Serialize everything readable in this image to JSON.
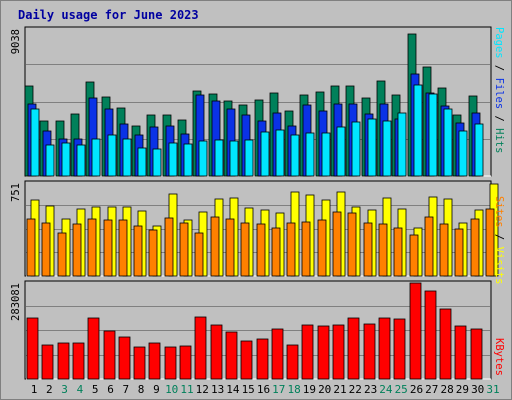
{
  "chart_data": [
    {
      "type": "bar",
      "panel": "pages-files-hits",
      "categories": [
        "1",
        "2",
        "3",
        "4",
        "5",
        "6",
        "7",
        "8",
        "9",
        "10",
        "11",
        "12",
        "13",
        "14",
        "15",
        "16",
        "17",
        "18",
        "19",
        "20",
        "21",
        "22",
        "23",
        "24",
        "25",
        "26",
        "27",
        "28",
        "29",
        "30",
        "31"
      ],
      "ymax_label": "9038",
      "ylim": [
        0,
        9038
      ],
      "series": [
        {
          "name": "Hits",
          "color": "#00805a",
          "values": [
            5550,
            3400,
            3400,
            3800,
            5750,
            4850,
            4200,
            3050,
            3750,
            3750,
            3450,
            5250,
            5050,
            4600,
            4350,
            4700,
            5100,
            4000,
            5000,
            5150,
            5550,
            5550,
            4800,
            5850,
            4950,
            8750,
            6700,
            5400,
            3750,
            4900,
            null
          ]
        },
        {
          "name": "Files",
          "color": "#0a32e6",
          "values": [
            4450,
            2750,
            2250,
            2250,
            4800,
            4100,
            3200,
            2550,
            3000,
            3100,
            2600,
            5000,
            4600,
            4100,
            3750,
            3400,
            3850,
            3050,
            4350,
            4000,
            4400,
            4450,
            3800,
            4400,
            3500,
            6300,
            5100,
            4300,
            3250,
            3850,
            null
          ]
        },
        {
          "name": "Pages",
          "color": "#00e6ff",
          "values": [
            4100,
            1900,
            2050,
            1900,
            2300,
            2500,
            2250,
            1700,
            1650,
            2050,
            1950,
            2150,
            2200,
            2150,
            2200,
            2700,
            2800,
            2550,
            2650,
            2650,
            3000,
            3350,
            3500,
            3400,
            3850,
            5600,
            5050,
            4100,
            2750,
            3200,
            null
          ]
        }
      ],
      "legend": [
        "Pages",
        "Files",
        "Hits"
      ]
    },
    {
      "type": "bar",
      "panel": "visits-sites",
      "categories": [
        "1",
        "2",
        "3",
        "4",
        "5",
        "6",
        "7",
        "8",
        "9",
        "10",
        "11",
        "12",
        "13",
        "14",
        "15",
        "16",
        "17",
        "18",
        "19",
        "20",
        "21",
        "22",
        "23",
        "24",
        "25",
        "26",
        "27",
        "28",
        "29",
        "30",
        "31"
      ],
      "ymax_label": "751",
      "ylim": [
        0,
        751
      ],
      "series": [
        {
          "name": "Visits",
          "color": "#ffff00",
          "values": [
            613,
            564,
            457,
            538,
            560,
            560,
            560,
            523,
            400,
            660,
            450,
            520,
            625,
            630,
            550,
            530,
            510,
            675,
            655,
            615,
            675,
            555,
            530,
            630,
            538,
            390,
            640,
            620,
            425,
            535,
            743
          ]
        },
        {
          "name": "Sites",
          "color": "#ff8000",
          "values": [
            460,
            430,
            350,
            416,
            460,
            450,
            450,
            400,
            375,
            470,
            430,
            350,
            475,
            460,
            425,
            420,
            390,
            430,
            440,
            450,
            520,
            510,
            430,
            420,
            390,
            330,
            480,
            420,
            380,
            460,
            540
          ]
        }
      ],
      "legend": [
        "Sites",
        "Visits"
      ]
    },
    {
      "type": "bar",
      "panel": "kbytes",
      "categories": [
        "1",
        "2",
        "3",
        "4",
        "5",
        "6",
        "7",
        "8",
        "9",
        "10",
        "11",
        "12",
        "13",
        "14",
        "15",
        "16",
        "17",
        "18",
        "19",
        "20",
        "21",
        "22",
        "23",
        "24",
        "25",
        "26",
        "27",
        "28",
        "29",
        "30",
        "31"
      ],
      "ymax_label": "283081",
      "ylim": [
        0,
        283081
      ],
      "series": [
        {
          "name": "KBytes",
          "color": "#ff0000",
          "values": [
            179000,
            100000,
            107000,
            107000,
            181000,
            142000,
            123000,
            93000,
            105000,
            93000,
            96000,
            182000,
            158000,
            140000,
            113000,
            117000,
            147000,
            99000,
            160000,
            156000,
            160000,
            180000,
            162000,
            180000,
            178000,
            283081,
            259000,
            205000,
            155000,
            147000,
            null
          ]
        }
      ],
      "legend": [
        "KBytes"
      ]
    }
  ],
  "title": "Daily usage for June 2023",
  "day_labels": [
    "1",
    "2",
    "3",
    "4",
    "5",
    "6",
    "7",
    "8",
    "9",
    "10",
    "11",
    "12",
    "13",
    "14",
    "15",
    "16",
    "17",
    "18",
    "19",
    "20",
    "21",
    "22",
    "23",
    "24",
    "25",
    "26",
    "27",
    "28",
    "29",
    "30",
    "31"
  ],
  "weekend_days": [
    3,
    4,
    10,
    11,
    17,
    18,
    24,
    25,
    31
  ],
  "colors": {
    "title": "#0000a0",
    "frame_bg": "#c0c0c0",
    "day_label": "#000000",
    "weekend_label": "#00805a",
    "separator": "#000000",
    "gridline": "#808080"
  },
  "legends": {
    "top": [
      {
        "text": "Pages",
        "color": "#00e6ff"
      },
      {
        "text": " / ",
        "color": "#000000"
      },
      {
        "text": "Files",
        "color": "#0a32e6"
      },
      {
        "text": " / ",
        "color": "#000000"
      },
      {
        "text": "Hits",
        "color": "#00805a"
      }
    ],
    "mid": [
      {
        "text": "Sites",
        "color": "#ff8000"
      },
      {
        "text": " / ",
        "color": "#000000"
      },
      {
        "text": "Visits",
        "color": "#ffff00"
      }
    ],
    "bottom": [
      {
        "text": "KBytes",
        "color": "#ff0000"
      }
    ]
  }
}
